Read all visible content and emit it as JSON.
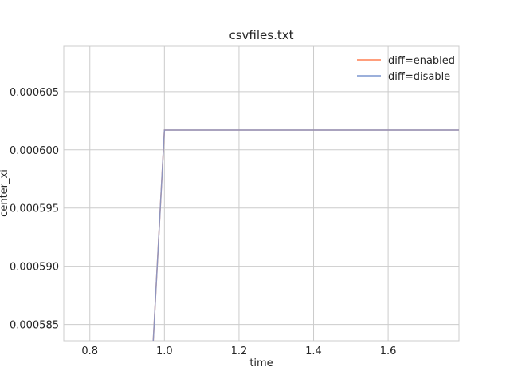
{
  "chart_data": {
    "type": "line",
    "title": "csvfiles.txt",
    "xlabel": "time",
    "ylabel": "center_xi",
    "xlim": [
      0.73,
      1.79
    ],
    "ylim": [
      0.0005836,
      0.0006089
    ],
    "xticks": [
      0.8,
      1.0,
      1.2,
      1.4,
      1.6
    ],
    "xtick_labels": [
      "0.8",
      "1.0",
      "1.2",
      "1.4",
      "1.6"
    ],
    "yticks": [
      0.000585,
      0.00059,
      0.000595,
      0.0006,
      0.000605
    ],
    "ytick_labels": [
      "0.000585",
      "0.000590",
      "0.000595",
      "0.000600",
      "0.000605"
    ],
    "grid": true,
    "legend_position": "top-right",
    "series": [
      {
        "name": "diff=enabled",
        "color": "#ff7f50",
        "x": [
          0.97,
          1.0,
          1.79
        ],
        "y": [
          0.0005836,
          0.0006017,
          0.0006017
        ]
      },
      {
        "name": "diff=disable",
        "color": "#7b96cf",
        "x": [
          0.97,
          1.0,
          1.79
        ],
        "y": [
          0.0005836,
          0.0006017,
          0.0006017
        ]
      }
    ]
  }
}
